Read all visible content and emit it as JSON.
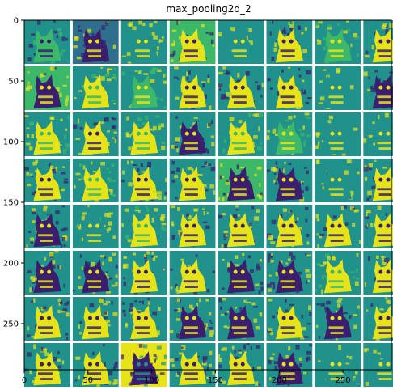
{
  "chart_data": {
    "type": "heatmap",
    "title": "max_pooling2d_2",
    "colormap": "viridis",
    "colors": {
      "dark": "#3b1e6e",
      "blue": "#2f6f8e",
      "teal": "#21918c",
      "green": "#3bb86a",
      "yellow": "#e6e418",
      "frame": "#000000"
    },
    "grid": {
      "rows": 8,
      "cols": 8,
      "tile_size": 36,
      "gap": 2
    },
    "xlim": [
      0,
      288
    ],
    "ylim": [
      288,
      0
    ],
    "x_ticks": [
      0,
      50,
      100,
      150,
      200,
      250
    ],
    "y_ticks": [
      0,
      50,
      100,
      150,
      200,
      250
    ],
    "channels": [
      {
        "bg": "teal",
        "fg": "green",
        "mark": "dark"
      },
      {
        "bg": "blue",
        "fg": "dark",
        "mark": "yellow"
      },
      {
        "bg": "teal",
        "fg": "teal",
        "mark": "yellow"
      },
      {
        "bg": "green",
        "fg": "yellow",
        "mark": "dark"
      },
      {
        "bg": "teal",
        "fg": "teal",
        "mark": "yellow"
      },
      {
        "bg": "teal",
        "fg": "yellow",
        "mark": "dark"
      },
      {
        "bg": "teal",
        "fg": "green",
        "mark": "yellow"
      },
      {
        "bg": "teal",
        "fg": "yellow",
        "mark": "dark"
      },
      {
        "bg": "green",
        "fg": "dark",
        "mark": "yellow"
      },
      {
        "bg": "teal",
        "fg": "yellow",
        "mark": "green"
      },
      {
        "bg": "teal",
        "fg": "green",
        "mark": "yellow"
      },
      {
        "bg": "teal",
        "fg": "yellow",
        "mark": "dark"
      },
      {
        "bg": "teal",
        "fg": "yellow",
        "mark": "dark"
      },
      {
        "bg": "teal",
        "fg": "yellow",
        "mark": "dark"
      },
      {
        "bg": "teal",
        "fg": "teal",
        "mark": "yellow"
      },
      {
        "bg": "teal",
        "fg": "dark",
        "mark": "yellow"
      },
      {
        "bg": "teal",
        "fg": "yellow",
        "mark": "green"
      },
      {
        "bg": "teal",
        "fg": "yellow",
        "mark": "dark"
      },
      {
        "bg": "teal",
        "fg": "yellow",
        "mark": "green"
      },
      {
        "bg": "teal",
        "fg": "dark",
        "mark": "yellow"
      },
      {
        "bg": "teal",
        "fg": "yellow",
        "mark": "green"
      },
      {
        "bg": "teal",
        "fg": "green",
        "mark": "yellow"
      },
      {
        "bg": "teal",
        "fg": "teal",
        "mark": "yellow"
      },
      {
        "bg": "teal",
        "fg": "teal",
        "mark": "yellow"
      },
      {
        "bg": "teal",
        "fg": "yellow",
        "mark": "dark"
      },
      {
        "bg": "teal",
        "fg": "yellow",
        "mark": "green"
      },
      {
        "bg": "teal",
        "fg": "yellow",
        "mark": "dark"
      },
      {
        "bg": "teal",
        "fg": "yellow",
        "mark": "dark"
      },
      {
        "bg": "green",
        "fg": "dark",
        "mark": "yellow"
      },
      {
        "bg": "teal",
        "fg": "dark",
        "mark": "yellow"
      },
      {
        "bg": "teal",
        "fg": "teal",
        "mark": "yellow"
      },
      {
        "bg": "teal",
        "fg": "yellow",
        "mark": "dark"
      },
      {
        "bg": "teal",
        "fg": "dark",
        "mark": "yellow"
      },
      {
        "bg": "teal",
        "fg": "teal",
        "mark": "yellow"
      },
      {
        "bg": "teal",
        "fg": "yellow",
        "mark": "green"
      },
      {
        "bg": "teal",
        "fg": "yellow",
        "mark": "dark"
      },
      {
        "bg": "teal",
        "fg": "yellow",
        "mark": "dark"
      },
      {
        "bg": "teal",
        "fg": "yellow",
        "mark": "dark"
      },
      {
        "bg": "teal",
        "fg": "yellow",
        "mark": "dark"
      },
      {
        "bg": "teal",
        "fg": "yellow",
        "mark": "dark"
      },
      {
        "bg": "teal",
        "fg": "dark",
        "mark": "yellow"
      },
      {
        "bg": "teal",
        "fg": "dark",
        "mark": "yellow"
      },
      {
        "bg": "teal",
        "fg": "yellow",
        "mark": "dark"
      },
      {
        "bg": "teal",
        "fg": "yellow",
        "mark": "dark"
      },
      {
        "bg": "teal",
        "fg": "dark",
        "mark": "yellow"
      },
      {
        "bg": "teal",
        "fg": "dark",
        "mark": "yellow"
      },
      {
        "bg": "teal",
        "fg": "yellow",
        "mark": "green"
      },
      {
        "bg": "teal",
        "fg": "yellow",
        "mark": "dark"
      },
      {
        "bg": "teal",
        "fg": "yellow",
        "mark": "dark"
      },
      {
        "bg": "teal",
        "fg": "yellow",
        "mark": "dark"
      },
      {
        "bg": "teal",
        "fg": "yellow",
        "mark": "dark"
      },
      {
        "bg": "teal",
        "fg": "dark",
        "mark": "yellow"
      },
      {
        "bg": "teal",
        "fg": "dark",
        "mark": "yellow"
      },
      {
        "bg": "teal",
        "fg": "yellow",
        "mark": "dark"
      },
      {
        "bg": "teal",
        "fg": "dark",
        "mark": "yellow"
      },
      {
        "bg": "teal",
        "fg": "yellow",
        "mark": "dark"
      },
      {
        "bg": "teal",
        "fg": "yellow",
        "mark": "dark"
      },
      {
        "bg": "teal",
        "fg": "yellow",
        "mark": "dark"
      },
      {
        "bg": "yellow",
        "fg": "dark",
        "mark": "teal"
      },
      {
        "bg": "teal",
        "fg": "yellow",
        "mark": "dark"
      },
      {
        "bg": "teal",
        "fg": "yellow",
        "mark": "dark"
      },
      {
        "bg": "teal",
        "fg": "dark",
        "mark": "yellow"
      },
      {
        "bg": "teal",
        "fg": "teal",
        "mark": "yellow"
      },
      {
        "bg": "teal",
        "fg": "teal",
        "mark": "yellow"
      }
    ]
  }
}
